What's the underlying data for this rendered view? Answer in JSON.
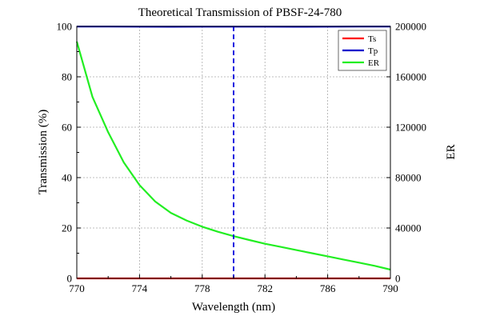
{
  "chart_data": {
    "type": "line",
    "title": "Theoretical Transmission of PBSF-24-780",
    "xlabel": "Wavelength (nm)",
    "ylabel": "Transmission (%)",
    "y2label": "ER",
    "xlim": [
      770,
      790
    ],
    "ylim": [
      0,
      100
    ],
    "y2lim": [
      0,
      200000
    ],
    "xticks": [
      770,
      774,
      778,
      782,
      786,
      790
    ],
    "yticks": [
      0,
      20,
      40,
      60,
      80,
      100
    ],
    "y2ticks": [
      0,
      40000,
      80000,
      120000,
      160000,
      200000
    ],
    "grid": true,
    "legend_position": "top-right",
    "marker_line_x": 780,
    "series": [
      {
        "name": "Ts",
        "axis": "left",
        "color": "#ff0000",
        "x": [
          770,
          772,
          774,
          776,
          778,
          780,
          782,
          784,
          786,
          788,
          790
        ],
        "y": [
          0,
          0,
          0,
          0,
          0,
          0,
          0,
          0,
          0,
          0,
          0
        ]
      },
      {
        "name": "Tp",
        "axis": "left",
        "color": "#0000cc",
        "x": [
          770,
          772,
          774,
          776,
          778,
          780,
          782,
          784,
          786,
          788,
          790
        ],
        "y": [
          99.95,
          99.93,
          99.9,
          99.88,
          99.9,
          99.92,
          99.9,
          99.88,
          99.9,
          99.93,
          99.95
        ]
      },
      {
        "name": "ER",
        "axis": "right",
        "color": "#22ee22",
        "x": [
          770,
          771,
          772,
          773,
          774,
          775,
          776,
          777,
          778,
          779,
          780,
          781,
          782,
          783,
          784,
          785,
          786,
          787,
          788,
          789,
          790
        ],
        "y": [
          188000,
          144000,
          116000,
          92000,
          74000,
          61000,
          52000,
          46000,
          41000,
          37000,
          33500,
          30500,
          27500,
          25000,
          22500,
          20000,
          17500,
          15000,
          12500,
          10000,
          7000
        ]
      }
    ]
  }
}
